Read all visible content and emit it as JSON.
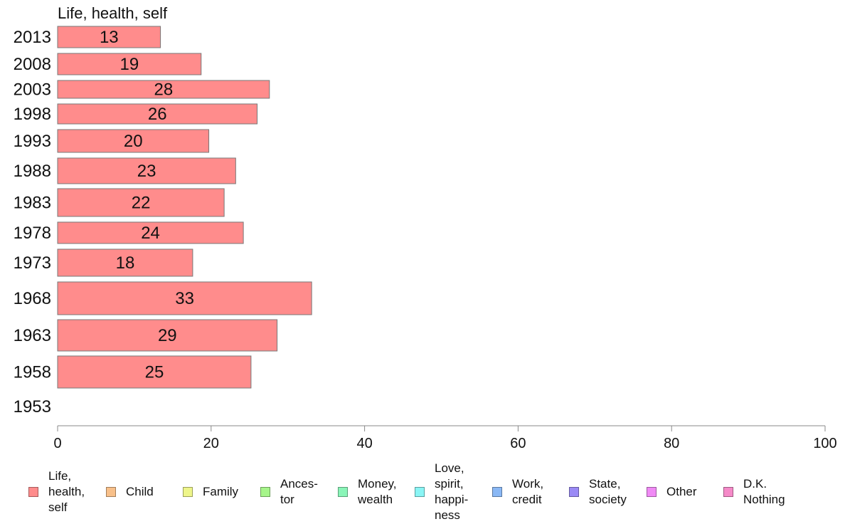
{
  "chart_data": {
    "type": "bar",
    "orientation": "horizontal",
    "panel_title": "Life, health, self",
    "categories": [
      "2013",
      "2008",
      "2003",
      "1998",
      "1993",
      "1988",
      "1983",
      "1978",
      "1973",
      "1968",
      "1963",
      "1958",
      "1953"
    ],
    "values": [
      13.4,
      18.7,
      27.6,
      26.0,
      19.7,
      23.2,
      21.7,
      24.2,
      17.6,
      33.1,
      28.6,
      25.2,
      null
    ],
    "data_labels": [
      "13",
      "19",
      "28",
      "26",
      "20",
      "23",
      "22",
      "24",
      "18",
      "33",
      "29",
      "25",
      ""
    ],
    "xlim": [
      0,
      100
    ],
    "x_ticks": [
      "0",
      "20",
      "40",
      "60",
      "80",
      "100"
    ],
    "grid": false,
    "bar_color": "#ff8c8c",
    "legend_position": "bottom",
    "legend": [
      {
        "label": "Life,\nhealth,\nself",
        "color": "#ff8c8c"
      },
      {
        "label": "Child",
        "color": "#f8c08a"
      },
      {
        "label": "Family",
        "color": "#eef58a"
      },
      {
        "label": "Ances-\ntor",
        "color": "#a6f58a"
      },
      {
        "label": "Money,\nwealth",
        "color": "#8af5b8"
      },
      {
        "label": "Love,\nspirit,\nhappi-\nness",
        "color": "#8af5f5"
      },
      {
        "label": "Work,\ncredit",
        "color": "#8ab8f5"
      },
      {
        "label": "State,\nsociety",
        "color": "#9a8af5"
      },
      {
        "label": "Other",
        "color": "#f08af5"
      },
      {
        "label": "D.K.\nNothing",
        "color": "#f58ac8"
      }
    ]
  }
}
